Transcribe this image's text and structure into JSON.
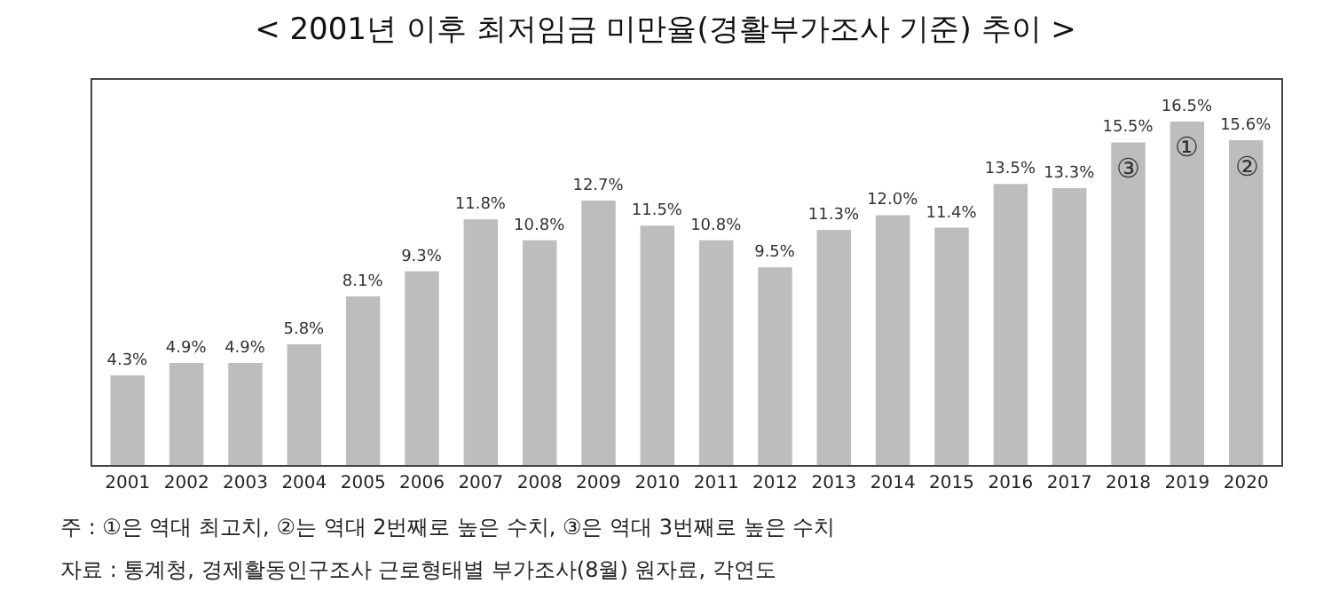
{
  "chart_data": {
    "type": "bar",
    "title": "< 2001년 이후 최저임금 미만율(경활부가조사 기준) 추이 >",
    "categories": [
      "2001",
      "2002",
      "2003",
      "2004",
      "2005",
      "2006",
      "2007",
      "2008",
      "2009",
      "2010",
      "2011",
      "2012",
      "2013",
      "2014",
      "2015",
      "2016",
      "2017",
      "2018",
      "2019",
      "2020"
    ],
    "values": [
      4.3,
      4.9,
      4.9,
      5.8,
      8.1,
      9.3,
      11.8,
      10.8,
      12.7,
      11.5,
      10.8,
      9.5,
      11.3,
      12.0,
      11.4,
      13.5,
      13.3,
      15.5,
      16.5,
      15.6
    ],
    "value_labels": [
      "4.3%",
      "4.9%",
      "4.9%",
      "5.8%",
      "8.1%",
      "9.3%",
      "11.8%",
      "10.8%",
      "12.7%",
      "11.5%",
      "10.8%",
      "9.5%",
      "11.3%",
      "12.0%",
      "11.4%",
      "13.5%",
      "13.3%",
      "15.5%",
      "16.5%",
      "15.6%"
    ],
    "color": "#bdbdbd",
    "ylim": [
      0,
      18.5
    ],
    "tick_labels": "x",
    "legend": false,
    "annotations": [
      {
        "text": "③",
        "x": "2018",
        "y": 15.5
      },
      {
        "text": "①",
        "x": "2019",
        "y": 16.5
      },
      {
        "text": "②",
        "x": "2020",
        "y": 15.6
      },
      "주 : ①은 역대 최고치, ②는 역대 2번째로 높은 수치, ③은 역대 3번째로 높은 수치",
      "자료 : 통계청, 경제활동인구조사 근로형태별 부가조사(8월) 원자료, 각연도"
    ]
  }
}
